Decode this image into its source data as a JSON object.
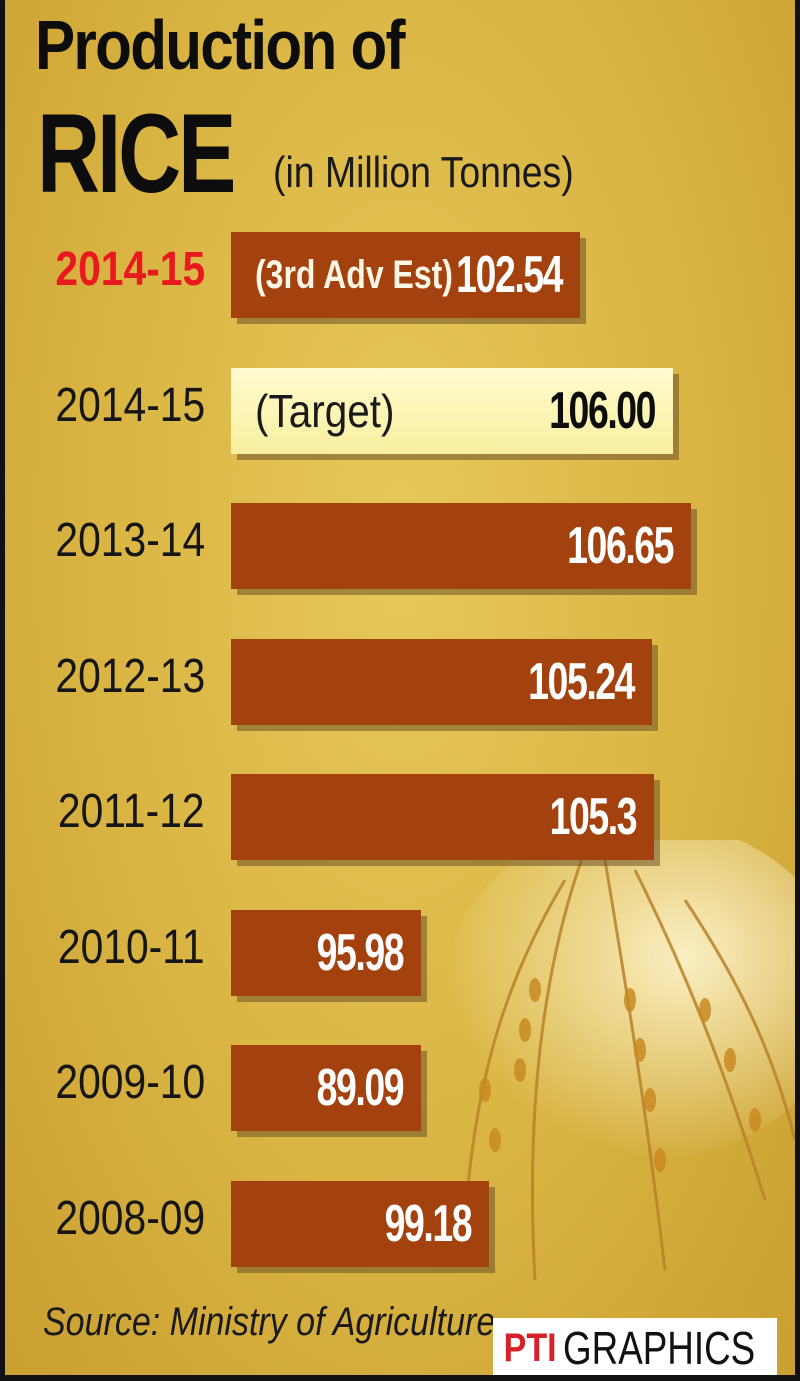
{
  "title": {
    "line1": "Production of",
    "line2": "RICE",
    "subtitle": "(in Million Tonnes)"
  },
  "chart_data": {
    "type": "bar",
    "orientation": "horizontal",
    "title": "Production of RICE",
    "unit": "(in Million Tonnes)",
    "categories": [
      "2014-15",
      "2014-15",
      "2013-14",
      "2012-13",
      "2011-12",
      "2010-11",
      "2009-10",
      "2008-09"
    ],
    "notes": [
      "(3rd Adv Est)",
      "(Target)",
      "",
      "",
      "",
      "",
      "",
      ""
    ],
    "value_labels": [
      "102.54",
      "106.00",
      "106.65",
      "105.24",
      "105.3",
      "95.98",
      "89.09",
      "99.18"
    ],
    "values": [
      102.54,
      106.0,
      106.65,
      105.24,
      105.3,
      95.98,
      89.09,
      99.18
    ],
    "highlight": [
      true,
      false,
      false,
      false,
      false,
      false,
      false,
      false
    ],
    "colors": {
      "bar": "#a3420f",
      "target_bar": "#fbf4b4",
      "highlight_label": "#e81a1f",
      "background": "#d9b443"
    }
  },
  "footer": {
    "source": "Source: Ministry of Agriculture",
    "credit_logo": "PTI",
    "credit_text": "GRAPHICS"
  }
}
